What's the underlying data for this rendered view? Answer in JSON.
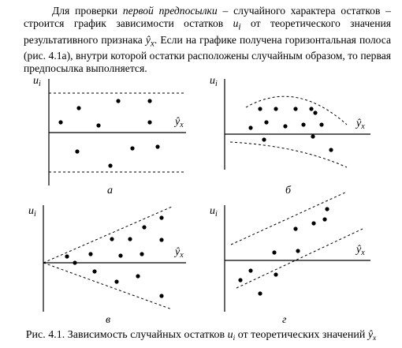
{
  "paragraph": [
    "Для проверки ",
    "первой предпосылки",
    " – случайного характера остатков – строится график зависимости остатков ",
    "u",
    "i",
    " от теоретического значения результативного признака ",
    "ŷ",
    "x",
    ". Если на графике получена горизонтальная полоса (рис. 4.1а), внутри которой остатки расположены случайным образом, то первая предпосылка выполняется."
  ],
  "figure": {
    "y_axis_label": {
      "symbol": "u",
      "subscript": "i"
    },
    "x_axis_label": {
      "symbol": "ŷ",
      "subscript": "x"
    },
    "panels": [
      "а",
      "б",
      "в",
      "г"
    ],
    "caption": [
      "Рис. 4.1. Зависимость случайных остатков ",
      "u",
      "i",
      " от теоретических значений ",
      "ŷ",
      "x"
    ]
  }
}
